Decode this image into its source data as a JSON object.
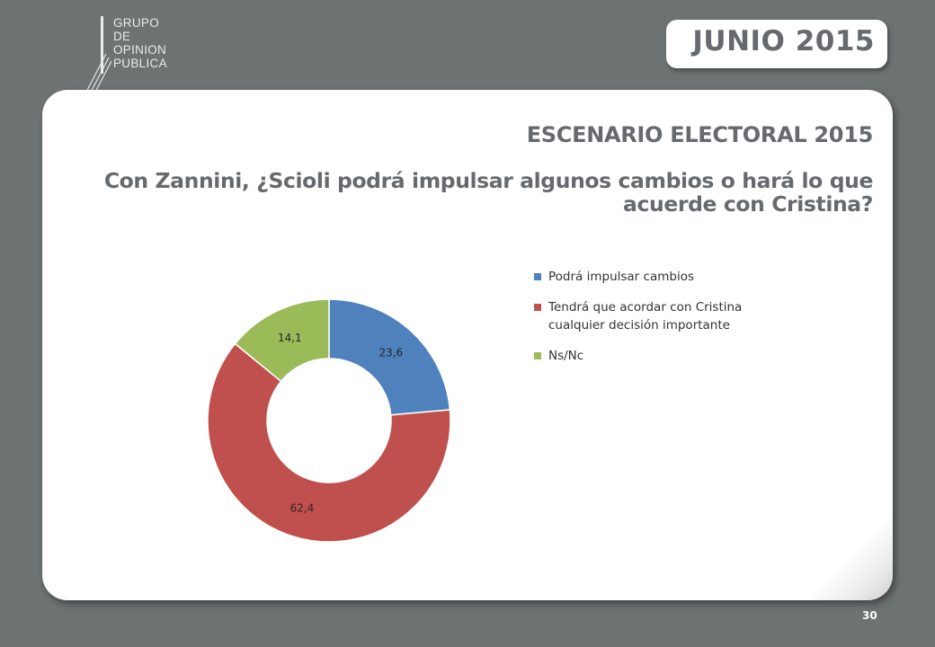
{
  "header": {
    "logo_lines": [
      "GRUPO",
      "DE",
      "OPINION",
      "PUBLICA"
    ],
    "date": "JUNIO 2015"
  },
  "card": {
    "title": "ESCENARIO ELECTORAL 2015",
    "question": "Con Zannini, ¿Scioli podrá impulsar algunos cambios o hará lo que acuerde con Cristina?"
  },
  "chart_data": {
    "type": "pie",
    "donut": true,
    "labels": [
      "Podrá impulsar cambios",
      "Tendrá que acordar con  Cristina cualquier decisión importante",
      "Ns/Nc"
    ],
    "values": [
      23.6,
      62.4,
      14.1
    ],
    "value_labels": [
      "23,6",
      "62,4",
      "14,1"
    ],
    "colors": [
      "#4f81bd",
      "#c0504d",
      "#9bbb59"
    ],
    "legend_position": "right"
  },
  "footer": {
    "page_number": "30"
  }
}
